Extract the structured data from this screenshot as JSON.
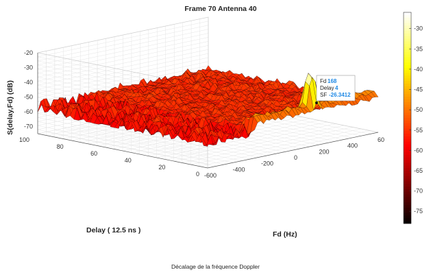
{
  "chart_data": {
    "type": "surface",
    "title": "Frame 70 Antenna 40",
    "xlabel": "Fd (Hz)",
    "ylabel": "Delay ( 12.5 ns )",
    "zlabel": "S(delay,Fd) (dB)",
    "x_ticks": [
      "-600",
      "-400",
      "-200",
      "0",
      "200",
      "400",
      "60"
    ],
    "y_ticks": [
      "0",
      "20",
      "40",
      "60",
      "80",
      "100"
    ],
    "z_ticks": [
      "-20",
      "-30",
      "-40",
      "-50",
      "-60",
      "-70"
    ],
    "xlim": [
      -600,
      600
    ],
    "ylim": [
      0,
      100
    ],
    "zlim": [
      -75,
      -20
    ],
    "grid": true,
    "colormap": "hot",
    "colorbar": {
      "ticks": [
        "-30",
        "-35",
        "-40",
        "-45",
        "-50",
        "-55",
        "-60",
        "-65",
        "-70",
        "-75"
      ],
      "range": [
        -78,
        -26
      ]
    },
    "noise_floor_db": -58,
    "peak": {
      "fd": 168,
      "delay": 4,
      "sf": -26.3412
    },
    "ridge_delay": 4,
    "datatip": {
      "fd_label": "Fd",
      "fd_value": "168",
      "delay_label": "Delay",
      "delay_value": "4",
      "sf_label": "SF",
      "sf_value": "-26.3412"
    }
  },
  "caption": "Décalage de la fréquence Doppler"
}
